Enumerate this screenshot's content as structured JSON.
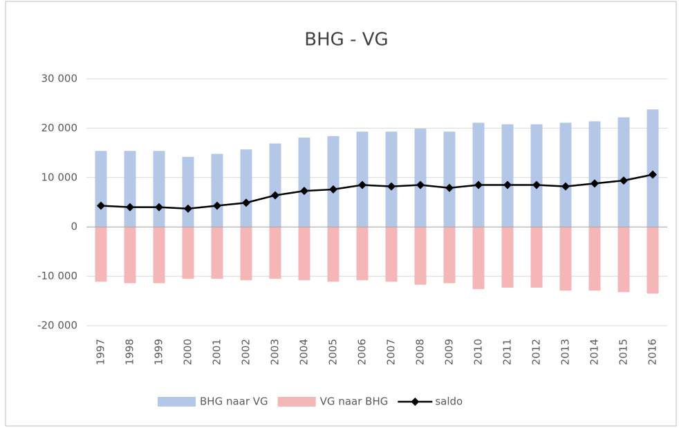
{
  "chart_data": {
    "type": "bar",
    "title": "BHG - VG",
    "categories": [
      "1997",
      "1998",
      "1999",
      "2000",
      "2001",
      "2002",
      "2003",
      "2004",
      "2005",
      "2006",
      "2007",
      "2008",
      "2009",
      "2010",
      "2011",
      "2012",
      "2013",
      "2014",
      "2015",
      "2016"
    ],
    "series": [
      {
        "name": "BHG naar VG",
        "type": "bar",
        "color": "#b4c7e7",
        "values": [
          15400,
          15400,
          15400,
          14200,
          14800,
          15700,
          16900,
          18100,
          18400,
          19300,
          19300,
          19900,
          19300,
          21100,
          20800,
          20800,
          21100,
          21400,
          22200,
          23800
        ]
      },
      {
        "name": "VG naar BHG",
        "type": "bar",
        "color": "#f4b6b6",
        "values": [
          -11100,
          -11400,
          -11400,
          -10500,
          -10500,
          -10800,
          -10500,
          -10800,
          -11100,
          -10800,
          -11100,
          -11700,
          -11400,
          -12600,
          -12300,
          -12300,
          -12900,
          -12900,
          -13200,
          -13500
        ]
      },
      {
        "name": "saldo",
        "type": "line",
        "color": "#000000",
        "values": [
          4300,
          4000,
          4000,
          3700,
          4300,
          4900,
          6400,
          7300,
          7600,
          8500,
          8200,
          8500,
          7900,
          8500,
          8500,
          8500,
          8200,
          8800,
          9400,
          10600
        ]
      }
    ],
    "ylim": [
      -20000,
      30000
    ],
    "yticks": [
      {
        "value": -20000,
        "label": "-20 000"
      },
      {
        "value": -10000,
        "label": "-10 000"
      },
      0,
      {
        "value": 10000,
        "label": "10 000"
      },
      {
        "value": 20000,
        "label": "20 000"
      },
      {
        "value": 30000,
        "label": "30 000"
      }
    ],
    "grid": true,
    "legend": "bottom"
  }
}
